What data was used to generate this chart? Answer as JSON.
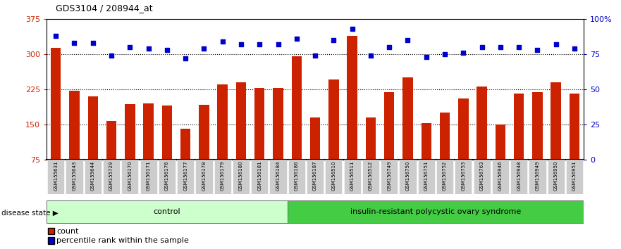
{
  "title": "GDS3104 / 208944_at",
  "samples": [
    "GSM155631",
    "GSM155643",
    "GSM155644",
    "GSM155729",
    "GSM156170",
    "GSM156171",
    "GSM156176",
    "GSM156177",
    "GSM156178",
    "GSM156179",
    "GSM156180",
    "GSM156181",
    "GSM156184",
    "GSM156186",
    "GSM156187",
    "GSM156510",
    "GSM156511",
    "GSM156512",
    "GSM156749",
    "GSM156750",
    "GSM156751",
    "GSM156752",
    "GSM156753",
    "GSM156763",
    "GSM156946",
    "GSM156948",
    "GSM156949",
    "GSM156950",
    "GSM156951"
  ],
  "bar_values": [
    313,
    222,
    210,
    157,
    193,
    195,
    190,
    140,
    192,
    235,
    240,
    228,
    228,
    295,
    165,
    245,
    338,
    165,
    218,
    250,
    152,
    175,
    205,
    230,
    150,
    215,
    218,
    240,
    215
  ],
  "dot_values_pct": [
    88,
    83,
    83,
    74,
    80,
    79,
    78,
    72,
    79,
    84,
    82,
    82,
    82,
    86,
    74,
    85,
    93,
    74,
    80,
    85,
    73,
    75,
    76,
    80,
    80,
    80,
    78,
    82,
    79
  ],
  "n_control": 13,
  "control_label": "control",
  "disease_label": "insulin-resistant polycystic ovary syndrome",
  "disease_state_label": "disease state",
  "bar_color": "#cc2200",
  "dot_color": "#0000cc",
  "ylim_left": [
    75,
    375
  ],
  "ylim_right": [
    0,
    100
  ],
  "yticks_left": [
    75,
    150,
    225,
    300,
    375
  ],
  "yticks_right": [
    0,
    25,
    50,
    75,
    100
  ],
  "hlines": [
    150,
    225,
    300
  ],
  "legend_count_label": "count",
  "legend_pct_label": "percentile rank within the sample",
  "control_color": "#ccffcc",
  "disease_color": "#44cc44",
  "xticklabel_bg": "#cccccc"
}
